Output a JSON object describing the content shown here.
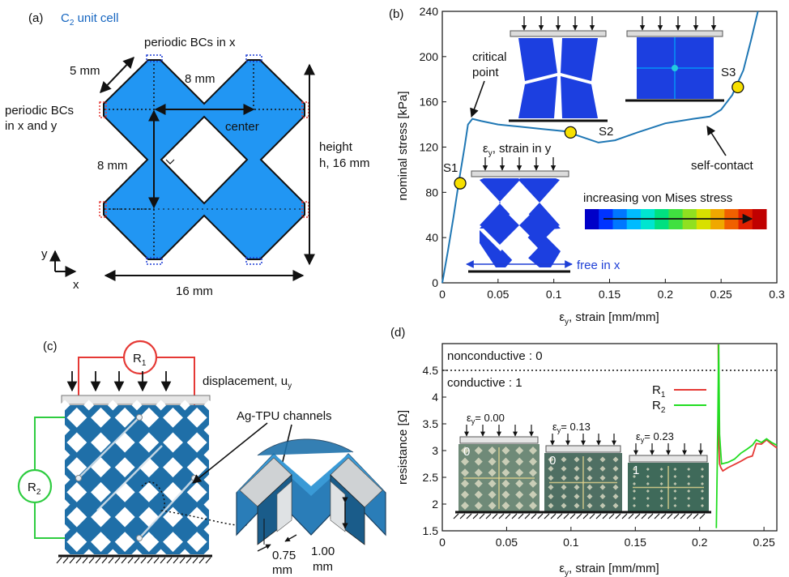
{
  "panel_a": {
    "label": "(a)",
    "title_main": "C",
    "title_sub": "2",
    "title_rest": " unit cell",
    "bcs_x": "periodic BCs in x",
    "bcs_xy_1": "periodic BCs",
    "bcs_xy_2": "in x and y",
    "dim_5": "5 mm",
    "dim_8_top": "8 mm",
    "dim_8_left": "8 mm",
    "center": "center",
    "height_1": "height",
    "height_2": "h, 16 mm",
    "width": "16 mm",
    "axis_y": "y",
    "axis_x": "x",
    "colors": {
      "fill": "#2196f3",
      "bc_blue": "#1e3fd6",
      "bc_red": "#e53935"
    }
  },
  "panel_b": {
    "label": "(b)",
    "critical_1": "critical",
    "critical_2": "point",
    "s1": "S1",
    "s2": "S2",
    "s3": "S3",
    "strain_in_y": "ε",
    "strain_in_y_sub": "y",
    "strain_in_y_rest": ", strain in y",
    "free_in_x": "free in x",
    "self_contact": "self-contact",
    "vm_label": "increasing von Mises stress",
    "colormap": [
      "#0000c8",
      "#0033ff",
      "#0077ff",
      "#00bbff",
      "#00e5d0",
      "#00e080",
      "#40e040",
      "#90e020",
      "#d8e000",
      "#f0a800",
      "#f06000",
      "#e02000",
      "#c00000"
    ],
    "colors": {
      "curve": "#1f77b4",
      "marker": "#f7e000",
      "fea": "#1c3fe0"
    }
  },
  "panel_c": {
    "label": "(c)",
    "r1": "R",
    "r1_sub": "1",
    "r2": "R",
    "r2_sub": "2",
    "displacement_1": "displacement, u",
    "displacement_sub": "y",
    "channels": "Ag-TPU channels",
    "dim_075_1": "0.75",
    "dim_075_2": "mm",
    "dim_100_1": "1.00",
    "dim_100_2": "mm",
    "colors": {
      "lattice": "#1f6fa8",
      "r1": "#e53935",
      "r2": "#2ecc40"
    }
  },
  "panel_d": {
    "label": "(d)",
    "nonconductive": "nonconductive : 0",
    "conductive": "conductive : 1",
    "photo_labels": [
      "0",
      "0",
      "1"
    ],
    "photo_strains": [
      "0.00",
      "0.13",
      "0.23"
    ],
    "photo_strain_prefix": "ε",
    "photo_strain_sub": "y",
    "colors": {
      "r1": "#e53935",
      "r2": "#22dd22"
    }
  },
  "chart_data": [
    {
      "type": "line",
      "panel": "(b)",
      "xlabel": "εy, strain [mm/mm]",
      "ylabel": "nominal stress [kPa]",
      "xlim": [
        0,
        0.3
      ],
      "ylim": [
        0,
        240
      ],
      "xticks": [
        "0",
        "0.05",
        "0.1",
        "0.15",
        "0.2",
        "0.25",
        "0.3"
      ],
      "yticks": [
        "0",
        "40",
        "80",
        "120",
        "160",
        "200",
        "240"
      ],
      "series": [
        {
          "x": [
            0,
            0.005,
            0.01,
            0.015,
            0.02,
            0.023,
            0.027,
            0.035,
            0.05,
            0.07,
            0.09,
            0.11,
            0.125,
            0.14,
            0.155,
            0.175,
            0.2,
            0.225,
            0.24,
            0.25,
            0.26,
            0.27,
            0.277,
            0.283
          ],
          "values": [
            0,
            28,
            58,
            90,
            120,
            140,
            145,
            143,
            140,
            138,
            136,
            134,
            129,
            124,
            126,
            133,
            141,
            145,
            147,
            153,
            166,
            188,
            215,
            240
          ]
        }
      ],
      "markers": [
        {
          "label": "S1",
          "x": 0.016,
          "y": 88
        },
        {
          "label": "S2",
          "x": 0.115,
          "y": 133
        },
        {
          "label": "S3",
          "x": 0.265,
          "y": 173
        }
      ]
    },
    {
      "type": "line",
      "panel": "(d)",
      "xlabel": "εy, strain [mm/mm]",
      "ylabel": "resistance [Ω]",
      "xlim": [
        0,
        0.26
      ],
      "ylim": [
        1.5,
        5
      ],
      "xticks": [
        "0",
        "0.05",
        "0.1",
        "0.15",
        "0.2",
        "0.25"
      ],
      "yticks": [
        "1.5",
        "2",
        "2.5",
        "3",
        "3.5",
        "4",
        "4.5"
      ],
      "reference_line_y": 4.5,
      "series": [
        {
          "name": "R1",
          "x": [
            0.2145,
            0.2148,
            0.2155,
            0.2165,
            0.218,
            0.222,
            0.227,
            0.232,
            0.237,
            0.241,
            0.244,
            0.248,
            0.252,
            0.256,
            0.26
          ],
          "values": [
            5,
            3.2,
            2.75,
            2.68,
            2.62,
            2.68,
            2.74,
            2.8,
            2.87,
            2.9,
            3.13,
            3.12,
            3.2,
            3.12,
            3.05
          ]
        },
        {
          "name": "R2",
          "x": [
            0.213,
            0.2135,
            0.2142,
            0.2148,
            0.2155,
            0.217,
            0.222,
            0.227,
            0.232,
            0.237,
            0.241,
            0.244,
            0.248,
            0.252,
            0.256,
            0.26
          ],
          "values": [
            1.55,
            2.4,
            3.6,
            5,
            3.3,
            2.75,
            2.78,
            2.84,
            2.95,
            3.03,
            3.1,
            3.2,
            3.15,
            3.22,
            3.15,
            3.1
          ]
        }
      ]
    }
  ]
}
